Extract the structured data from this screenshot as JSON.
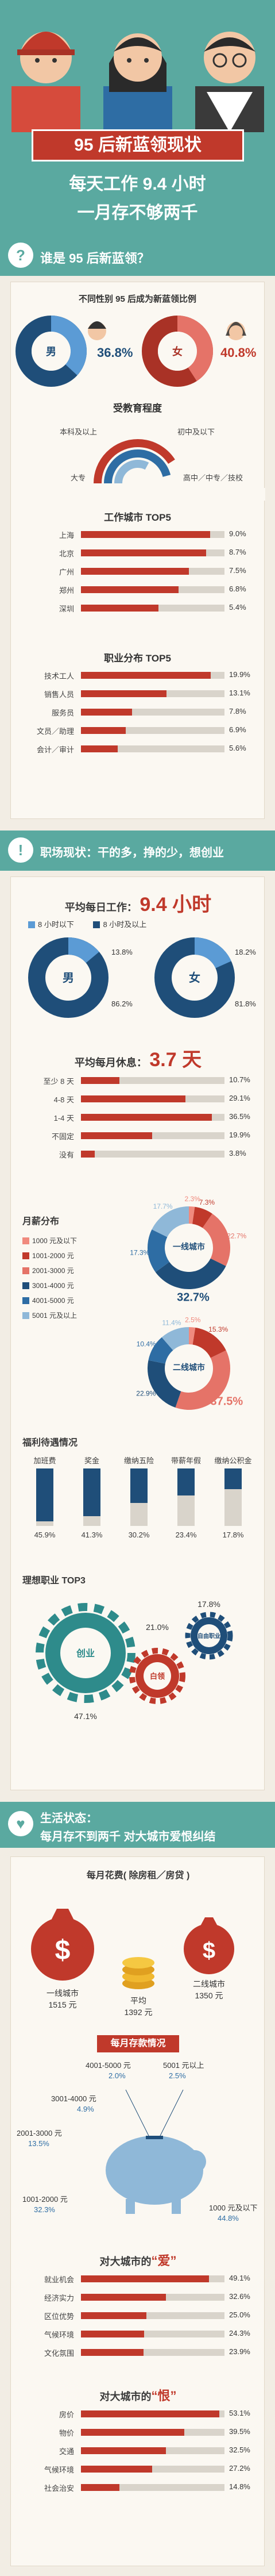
{
  "header": {
    "title": "95 后新蓝领现状",
    "line1": "每天工作 9.4 小时",
    "line2": "一月存不够两千"
  },
  "section1": {
    "badge": "?",
    "heading": "谁是 95 后新蓝领？",
    "gender": {
      "title": "不同性别 95 后成为新蓝领比例",
      "male_label": "男",
      "male_value": "36.8%",
      "female_label": "女",
      "female_value": "40.8%"
    },
    "education": {
      "title": "受教育程度",
      "labels": [
        "本科及以上",
        "初中及以下",
        "大专",
        "高中／中专／技校"
      ]
    },
    "cities": {
      "title": "工作城市 TOP5",
      "rows": [
        {
          "label": "上海",
          "value": "9.0%",
          "pct": 9.0
        },
        {
          "label": "北京",
          "value": "8.7%",
          "pct": 8.7
        },
        {
          "label": "广州",
          "value": "7.5%",
          "pct": 7.5
        },
        {
          "label": "郑州",
          "value": "6.8%",
          "pct": 6.8
        },
        {
          "label": "深圳",
          "value": "5.4%",
          "pct": 5.4
        }
      ]
    },
    "jobs": {
      "title": "职业分布 TOP5",
      "rows": [
        {
          "label": "技术工人",
          "value": "19.9%",
          "pct": 19.9
        },
        {
          "label": "销售人员",
          "value": "13.1%",
          "pct": 13.1
        },
        {
          "label": "服务员",
          "value": "7.8%",
          "pct": 7.8
        },
        {
          "label": "文员／助理",
          "value": "6.9%",
          "pct": 6.9
        },
        {
          "label": "会计／审计",
          "value": "5.6%",
          "pct": 5.6
        }
      ]
    }
  },
  "section2": {
    "badge": "!",
    "heading": "职场现状：干的多，挣的少，想创业",
    "hours": {
      "title": "平均每日工作：",
      "value": "9.4 小时",
      "legend_a": "8 小时以下",
      "legend_b": "8 小时及以上",
      "male_label": "男",
      "male_a": "13.8%",
      "male_b": "86.2%",
      "female_label": "女",
      "female_a": "18.2%",
      "female_b": "81.8%"
    },
    "rest": {
      "title": "平均每月休息：",
      "value": "3.7 天",
      "rows": [
        {
          "label": "至少 8 天",
          "value": "10.7%",
          "pct": 10.7
        },
        {
          "label": "4-8 天",
          "value": "29.1%",
          "pct": 29.1
        },
        {
          "label": "1-4 天",
          "value": "36.5%",
          "pct": 36.5
        },
        {
          "label": "不固定",
          "value": "19.9%",
          "pct": 19.9
        },
        {
          "label": "没有",
          "value": "3.8%",
          "pct": 3.8
        }
      ]
    },
    "salary": {
      "title": "月薪分布",
      "legend": [
        "1000 元及以下",
        "1001-2000 元",
        "2001-3000 元",
        "3001-4000 元",
        "4001-5000 元",
        "5001 元及以上"
      ],
      "tier1_label": "一线城市",
      "tier1_values": [
        "2.3%",
        "7.3%",
        "22.7%",
        "32.7%",
        "17.3%",
        "17.7%"
      ],
      "tier2_label": "二线城市",
      "tier2_values": [
        "2.5%",
        "15.3%",
        "37.5%",
        "22.9%",
        "10.4%",
        "11.4%"
      ]
    },
    "benefits": {
      "title": "福利待遇情况",
      "items": [
        {
          "label": "加班费",
          "value": "45.9%",
          "pct": 45.9
        },
        {
          "label": "奖金",
          "value": "41.3%",
          "pct": 41.3
        },
        {
          "label": "缴纳五险",
          "value": "30.2%",
          "pct": 30.2
        },
        {
          "label": "带薪年假",
          "value": "23.4%",
          "pct": 23.4
        },
        {
          "label": "缴纳公积金",
          "value": "17.8%",
          "pct": 17.8
        }
      ]
    },
    "ideal": {
      "title": "理想职业 TOP3",
      "items": [
        {
          "label": "创业",
          "value": "47.1%"
        },
        {
          "label": "白领",
          "value": "21.0%"
        },
        {
          "label": "自由职业",
          "value": "17.8%"
        }
      ]
    }
  },
  "section3": {
    "badge": "♥",
    "heading1": "生活状态：",
    "heading2": "每月存不到两千 对大城市爱恨纠结",
    "spend": {
      "title": "每月花费( 除房租／房贷 )",
      "tier1_label": "一线城市",
      "tier1_value": "1515 元",
      "tier2_label": "二线城市",
      "tier2_value": "1350 元",
      "avg_label": "平均",
      "avg_value": "1392 元"
    },
    "save": {
      "title": "每月存款情况",
      "items": [
        {
          "label": "4001-5000 元",
          "value": "2.0%"
        },
        {
          "label": "5001 元以上",
          "value": "2.5%"
        },
        {
          "label": "3001-4000 元",
          "value": "4.9%"
        },
        {
          "label": "2001-3000 元",
          "value": "13.5%"
        },
        {
          "label": "1001-2000 元",
          "value": "32.3%"
        },
        {
          "label": "1000 元及以下",
          "value": "44.8%"
        }
      ]
    },
    "love": {
      "title_a": "对大城市的",
      "title_b": "“爱”",
      "rows": [
        {
          "label": "就业机会",
          "value": "49.1%",
          "pct": 49.1
        },
        {
          "label": "经济实力",
          "value": "32.6%",
          "pct": 32.6
        },
        {
          "label": "区位优势",
          "value": "25.0%",
          "pct": 25.0
        },
        {
          "label": "气候环境",
          "value": "24.3%",
          "pct": 24.3
        },
        {
          "label": "文化氛围",
          "value": "23.9%",
          "pct": 23.9
        }
      ]
    },
    "hate": {
      "title_a": "对大城市的",
      "title_b": "“恨”",
      "rows": [
        {
          "label": "房价",
          "value": "53.1%",
          "pct": 53.1
        },
        {
          "label": "物价",
          "value": "39.5%",
          "pct": 39.5
        },
        {
          "label": "交通",
          "value": "32.5%",
          "pct": 32.5
        },
        {
          "label": "气候环境",
          "value": "27.2%",
          "pct": 27.2
        },
        {
          "label": "社会治安",
          "value": "14.8%",
          "pct": 14.8
        }
      ]
    }
  },
  "colors": {
    "red": "#c0392b",
    "teal": "#5aa9a0",
    "navy": "#1f4e79",
    "blue": "#3f7fb0",
    "lightblue": "#8fb8d8"
  }
}
